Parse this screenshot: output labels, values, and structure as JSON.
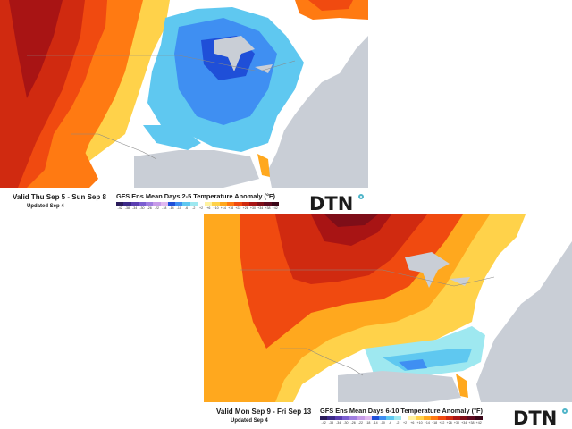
{
  "panels": [
    {
      "valid": "Valid Thu Sep 5 - Sun Sep 8",
      "updated": "Updated Sep 4",
      "title": "GFS Ens Mean Days 2-5 Temperature Anomaly (°F)",
      "brand": "DTN"
    },
    {
      "valid": "Valid Mon Sep 9 - Fri Sep 13",
      "updated": "Updated Sep 4",
      "title": "GFS Ens Mean Days 6-10 Temperature Anomaly (°F)",
      "brand": "DTN"
    }
  ],
  "scale": {
    "labels": [
      "-42",
      "-38",
      "-34",
      "-30",
      "-26",
      "-22",
      "-18",
      "-14",
      "-10",
      "-6",
      "-2",
      "+2",
      "+6",
      "+10",
      "+14",
      "+18",
      "+22",
      "+26",
      "+30",
      "+34",
      "+38",
      "+42"
    ],
    "colors": [
      "#2a1c5a",
      "#3c2a88",
      "#5a3eb0",
      "#7a5ed0",
      "#a07ee0",
      "#c79ce8",
      "#e0b8f0",
      "#1f4fd8",
      "#3f8ff2",
      "#5fc8f0",
      "#9ee8f0",
      "#ffffff",
      "#fff2a0",
      "#ffd24a",
      "#ffa81e",
      "#ff7a12",
      "#f04a10",
      "#d02a10",
      "#a81414",
      "#7e0e18",
      "#5c0a20",
      "#3a0618"
    ]
  },
  "colors": {
    "land_neutral": "#ffffff",
    "ocean": "#c9ced6",
    "lakes": "#c9ced6",
    "border_lines": "#888888",
    "logo_mark": "#4fb5c9"
  },
  "icons": {
    "logo_mark": "dtn-logo-circle"
  }
}
